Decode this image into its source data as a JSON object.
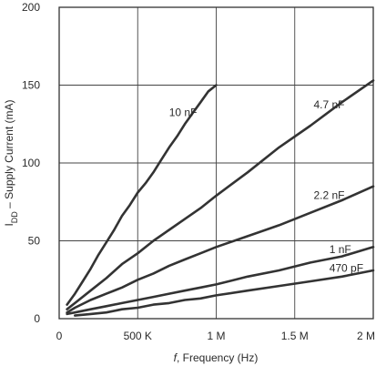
{
  "chart_data": {
    "type": "line",
    "xlabel_prefix": "f",
    "xlabel_rest": ", Frequency (Hz)",
    "ylabel_main": "I",
    "ylabel_sub": "DD",
    "ylabel_rest": " – Supply Current (mA)",
    "xlim": [
      0,
      2000000
    ],
    "ylim": [
      0,
      200
    ],
    "grid": true,
    "x_ticks": [
      {
        "value": 0,
        "label": "0"
      },
      {
        "value": 500000,
        "label": "500 K"
      },
      {
        "value": 1000000,
        "label": "1 M"
      },
      {
        "value": 1500000,
        "label": "1.5 M"
      },
      {
        "value": 2000000,
        "label": "2 M"
      }
    ],
    "y_ticks": [
      {
        "value": 0,
        "label": "0"
      },
      {
        "value": 50,
        "label": "50"
      },
      {
        "value": 100,
        "label": "100"
      },
      {
        "value": 150,
        "label": "150"
      },
      {
        "value": 200,
        "label": "200"
      }
    ],
    "series": [
      {
        "name": "10 nF",
        "x": [
          50000,
          100000,
          150000,
          200000,
          250000,
          300000,
          350000,
          400000,
          450000,
          500000,
          550000,
          600000,
          650000,
          700000,
          750000,
          800000,
          850000,
          900000,
          950000,
          1000000
        ],
        "y": [
          9,
          16,
          24,
          32,
          41,
          49,
          57,
          66,
          73,
          81,
          87,
          94,
          102,
          110,
          117,
          125,
          132,
          139,
          146,
          150
        ]
      },
      {
        "name": "4.7 nF",
        "x": [
          50000,
          100000,
          200000,
          300000,
          400000,
          500000,
          600000,
          700000,
          800000,
          900000,
          1000000,
          1200000,
          1400000,
          1600000,
          1800000,
          2000000
        ],
        "y": [
          6,
          10,
          18,
          26,
          35,
          42,
          50,
          57,
          64,
          71,
          79,
          94,
          110,
          124,
          139,
          153
        ]
      },
      {
        "name": "2.2 nF",
        "x": [
          50000,
          100000,
          200000,
          300000,
          400000,
          500000,
          600000,
          700000,
          800000,
          900000,
          1000000,
          1200000,
          1400000,
          1600000,
          1800000,
          2000000
        ],
        "y": [
          4,
          7,
          12,
          16,
          20,
          25,
          29,
          34,
          38,
          42,
          46,
          53,
          60,
          68,
          76,
          85
        ]
      },
      {
        "name": "1 nF",
        "x": [
          50000,
          100000,
          200000,
          300000,
          400000,
          500000,
          600000,
          700000,
          800000,
          900000,
          1000000,
          1200000,
          1400000,
          1600000,
          1800000,
          2000000
        ],
        "y": [
          3,
          4,
          6,
          8,
          10,
          12,
          14,
          16,
          18,
          20,
          22,
          27,
          31,
          36,
          40,
          46
        ]
      },
      {
        "name": "470 pF",
        "x": [
          100000,
          200000,
          300000,
          400000,
          500000,
          600000,
          700000,
          800000,
          900000,
          1000000,
          1200000,
          1400000,
          1600000,
          1800000,
          2000000
        ],
        "y": [
          2,
          3,
          4,
          6,
          7,
          9,
          10,
          12,
          13,
          15,
          18,
          21,
          24,
          27,
          31
        ]
      }
    ],
    "series_label_values": [
      {
        "text": "10 nF",
        "x": 700000,
        "y": 130
      },
      {
        "text": "4.7 nF",
        "x": 1620000,
        "y": 135
      },
      {
        "text": "2.2 nF",
        "x": 1620000,
        "y": 77
      },
      {
        "text": "1 nF",
        "x": 1720000,
        "y": 42
      },
      {
        "text": "470 pF",
        "x": 1720000,
        "y": 30
      }
    ],
    "colors": {
      "line": "#333333",
      "grid": "#444444",
      "frame": "#333333",
      "text": "#2a2a2a"
    }
  }
}
